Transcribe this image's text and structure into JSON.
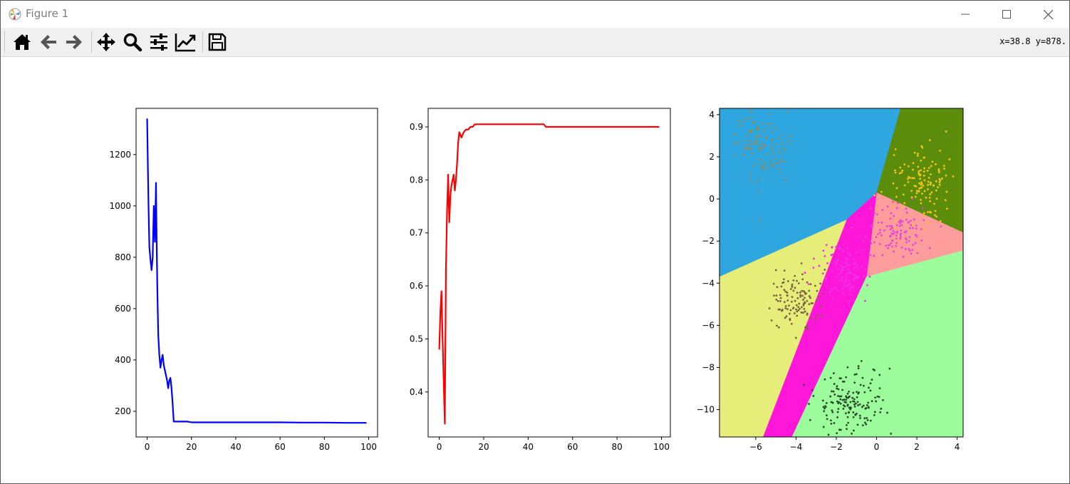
{
  "window": {
    "title": "Figure 1",
    "minimize": "minimize",
    "maximize": "maximize",
    "close": "close"
  },
  "toolbar": {
    "tools": [
      "home",
      "back",
      "forward",
      "pan",
      "zoom",
      "configure-subplots",
      "edit-axes",
      "save"
    ],
    "coords_text": "x=38.8 y=878."
  },
  "colors": {
    "blue": "#0000ff",
    "red": "#ff0000",
    "sky": "#2ea7e0",
    "olive": "#5b8c0a",
    "salmon": "#ff9d9d",
    "magenta": "#ff17d9",
    "yellow": "#e6ee79",
    "lightgreen": "#9dfd9d"
  },
  "chart_data": [
    {
      "type": "line",
      "title": "",
      "xlabel": "",
      "ylabel": "",
      "xlim": [
        -5,
        104
      ],
      "ylim": [
        100,
        1380
      ],
      "xticks": [
        0,
        20,
        40,
        60,
        80,
        100
      ],
      "yticks": [
        200,
        400,
        600,
        800,
        1000,
        1200
      ],
      "series": [
        {
          "color": "#0000ff",
          "x": [
            0,
            0.3,
            0.6,
            1,
            1.5,
            2,
            2.5,
            3,
            3.5,
            4,
            4.3,
            4.6,
            5,
            5.5,
            6,
            6.5,
            7,
            7.5,
            8,
            8.5,
            9,
            9.5,
            10,
            10.5,
            11,
            11.5,
            12,
            13,
            15,
            18,
            20,
            30,
            40,
            50,
            60,
            70,
            80,
            90,
            99
          ],
          "y": [
            1340,
            1170,
            1010,
            840,
            790,
            750,
            800,
            1000,
            860,
            1090,
            850,
            680,
            500,
            420,
            370,
            400,
            420,
            380,
            360,
            340,
            320,
            290,
            320,
            330,
            290,
            230,
            160,
            160,
            160,
            160,
            157,
            157,
            157,
            157,
            157,
            156,
            156,
            155,
            155
          ]
        }
      ]
    },
    {
      "type": "line",
      "title": "",
      "xlabel": "",
      "ylabel": "",
      "xlim": [
        -5,
        104
      ],
      "ylim": [
        0.315,
        0.935
      ],
      "xticks": [
        0,
        20,
        40,
        60,
        80,
        100
      ],
      "yticks": [
        0.4,
        0.5,
        0.6,
        0.7,
        0.8,
        0.9
      ],
      "series": [
        {
          "color": "#ff0000",
          "x": [
            0,
            0.5,
            1,
            1.5,
            2,
            2.5,
            3,
            3.5,
            4,
            4.5,
            5,
            5.5,
            6,
            6.5,
            7,
            7.5,
            8,
            8.5,
            9,
            10,
            11,
            12,
            13,
            14,
            15,
            16,
            18,
            20,
            25,
            30,
            40,
            47,
            48,
            50,
            60,
            70,
            80,
            90,
            99
          ],
          "y": [
            0.48,
            0.55,
            0.59,
            0.5,
            0.42,
            0.34,
            0.63,
            0.74,
            0.81,
            0.72,
            0.77,
            0.79,
            0.8,
            0.81,
            0.78,
            0.8,
            0.83,
            0.87,
            0.89,
            0.88,
            0.89,
            0.895,
            0.895,
            0.9,
            0.9,
            0.905,
            0.905,
            0.905,
            0.905,
            0.905,
            0.905,
            0.905,
            0.9,
            0.9,
            0.9,
            0.9,
            0.9,
            0.9,
            0.9
          ]
        }
      ]
    },
    {
      "type": "scatter",
      "title": "",
      "xlabel": "",
      "ylabel": "",
      "xlim": [
        -7.8,
        4.3
      ],
      "ylim": [
        -11.3,
        4.3
      ],
      "xticks": [
        -6,
        -4,
        -2,
        0,
        2,
        4
      ],
      "yticks": [
        -10,
        -8,
        -6,
        -4,
        -2,
        0,
        2,
        4
      ],
      "regions": [
        {
          "color": "#2ea7e0",
          "polygon": [
            [
              -7.8,
              4.3
            ],
            [
              1.2,
              4.3
            ],
            [
              0,
              0.3
            ],
            [
              -1.5,
              -1.0
            ],
            [
              -7.8,
              -3.7
            ]
          ]
        },
        {
          "color": "#5b8c0a",
          "polygon": [
            [
              1.2,
              4.3
            ],
            [
              4.3,
              4.3
            ],
            [
              4.3,
              -1.6
            ],
            [
              0,
              0.3
            ]
          ]
        },
        {
          "color": "#ff9d9d",
          "polygon": [
            [
              0,
              0.3
            ],
            [
              4.3,
              -1.6
            ],
            [
              4.3,
              -2.45
            ],
            [
              -0.5,
              -3.7
            ]
          ]
        },
        {
          "color": "#ff17d9",
          "polygon": [
            [
              -1.5,
              -1.0
            ],
            [
              0,
              0.3
            ],
            [
              -0.5,
              -3.7
            ],
            [
              -4.2,
              -11.3
            ],
            [
              -5.65,
              -11.3
            ]
          ]
        },
        {
          "color": "#e6ee79",
          "polygon": [
            [
              -7.8,
              -3.7
            ],
            [
              -1.5,
              -1.0
            ],
            [
              -5.65,
              -11.3
            ],
            [
              -7.8,
              -11.3
            ]
          ]
        },
        {
          "color": "#9dfd9d",
          "polygon": [
            [
              -0.5,
              -3.7
            ],
            [
              4.3,
              -2.45
            ],
            [
              4.3,
              -11.3
            ],
            [
              -4.2,
              -11.3
            ]
          ]
        }
      ],
      "clusters": [
        {
          "color": "#8a8a5c",
          "center": [
            -5.6,
            2.5
          ],
          "spread": [
            0.7,
            0.8
          ],
          "n": 110
        },
        {
          "color": "#f5c518",
          "center": [
            2.2,
            0.6
          ],
          "spread": [
            0.8,
            0.9
          ],
          "n": 130
        },
        {
          "color": "#e845d6",
          "center": [
            0.9,
            -1.5
          ],
          "spread": [
            0.8,
            0.6
          ],
          "n": 110
        },
        {
          "color": "#ee33ee",
          "center": [
            -1.6,
            -3.4
          ],
          "spread": [
            0.6,
            0.6
          ],
          "n": 100
        },
        {
          "color": "#7a6445",
          "center": [
            -4.1,
            -4.8
          ],
          "spread": [
            0.6,
            0.7
          ],
          "n": 120
        },
        {
          "color": "#2b4a2b",
          "center": [
            -1.3,
            -9.6
          ],
          "spread": [
            0.8,
            0.8
          ],
          "n": 160
        }
      ]
    }
  ]
}
